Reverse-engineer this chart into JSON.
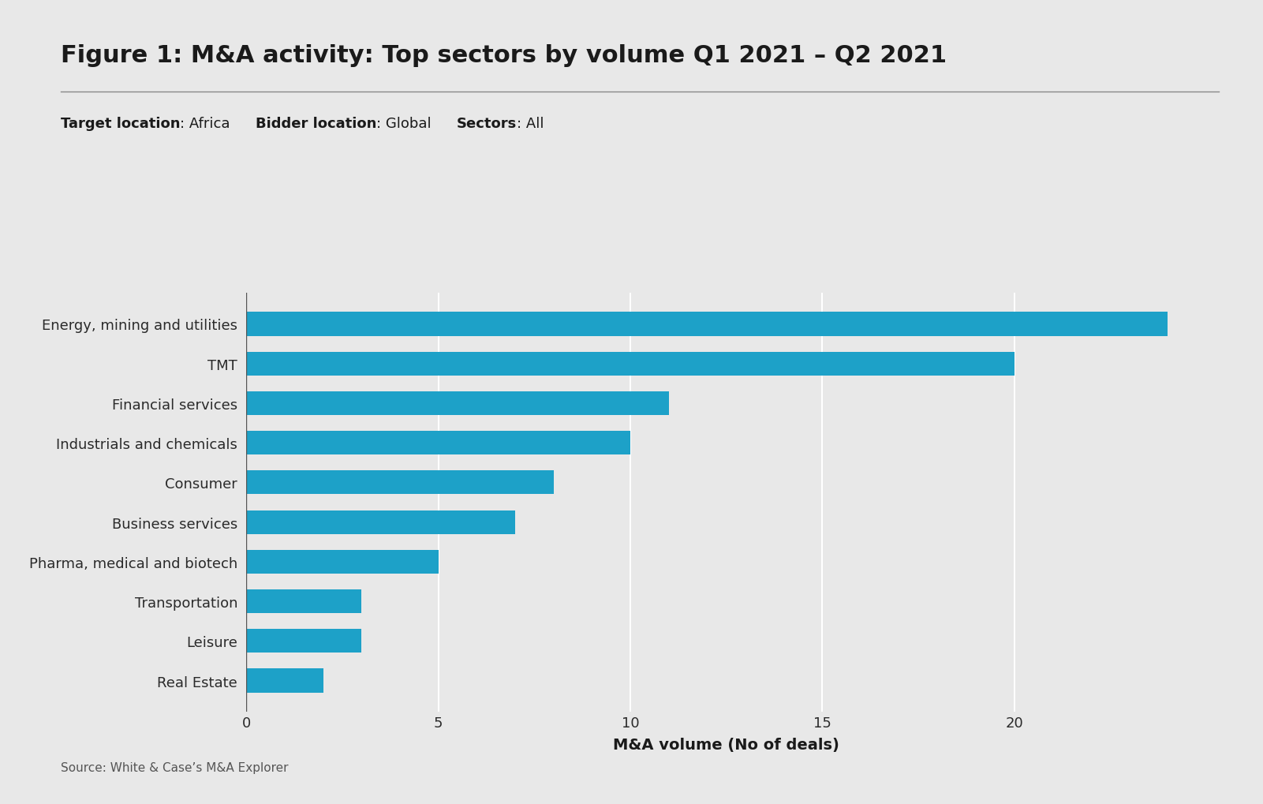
{
  "title": "Figure 1: M&A activity: Top sectors by volume Q1 2021 – Q2 2021",
  "subtitle_parts": [
    {
      "bold": "Target location",
      "normal": ": Africa"
    },
    {
      "bold": "Bidder location",
      "normal": ": Global"
    },
    {
      "bold": "Sectors",
      "normal": ": All"
    }
  ],
  "categories": [
    "Energy, mining and utilities",
    "TMT",
    "Financial services",
    "Industrials and chemicals",
    "Consumer",
    "Business services",
    "Pharma, medical and biotech",
    "Transportation",
    "Leisure",
    "Real Estate"
  ],
  "values": [
    24,
    20,
    11,
    10,
    8,
    7,
    5,
    3,
    3,
    2
  ],
  "bar_color": "#1da1c8",
  "background_color": "#e8e8e8",
  "xlabel": "M&A volume (No of deals)",
  "source": "Source: White & Case’s M&A Explorer",
  "xlim": [
    0,
    25
  ],
  "xticks": [
    0,
    5,
    10,
    15,
    20
  ],
  "title_fontsize": 22,
  "label_fontsize": 13,
  "tick_fontsize": 13,
  "source_fontsize": 11,
  "subtitle_fontsize": 13,
  "xlabel_fontsize": 14
}
